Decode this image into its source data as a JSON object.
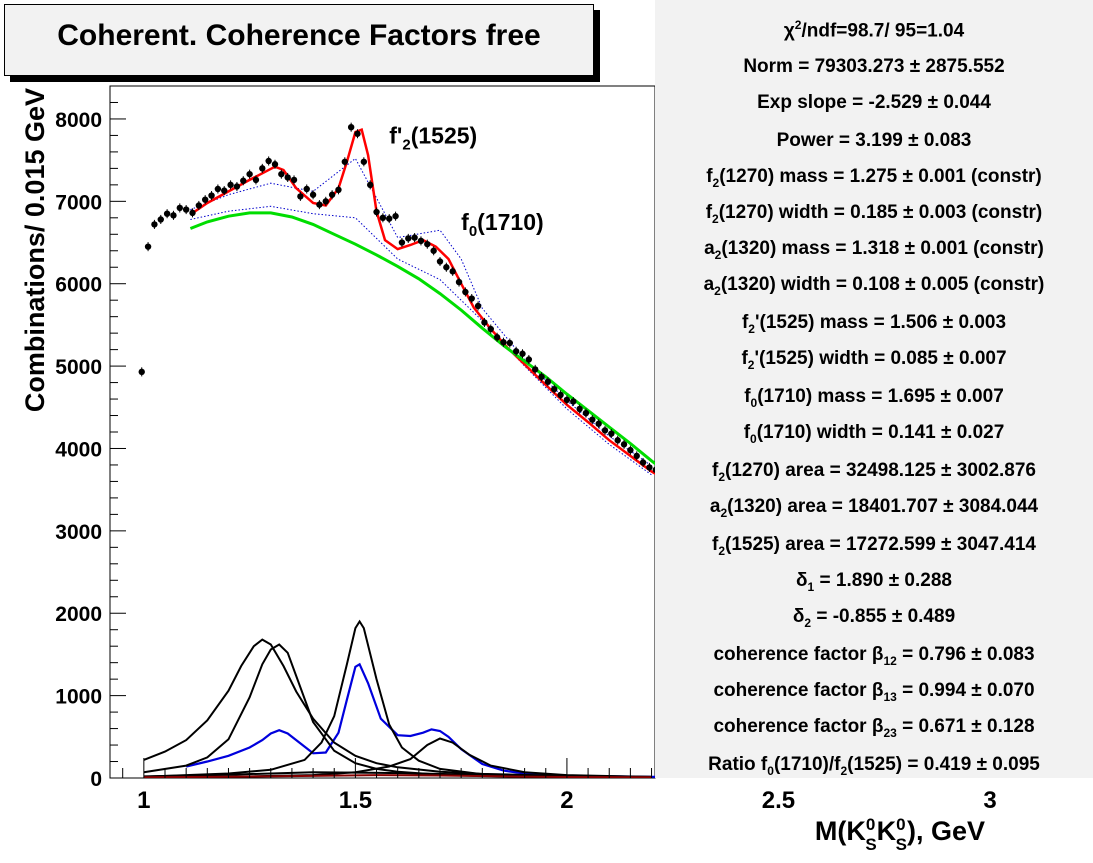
{
  "title": "Coherent. Coherence Factors free",
  "chart_data": {
    "type": "line",
    "xlabel": "M(K_S^0 K_S^0), GeV",
    "ylabel": "Combinations/ 0.015 GeV",
    "xlim": [
      0.92,
      3.0
    ],
    "ylim": [
      0,
      8400
    ],
    "x_ticks": [
      1,
      1.5,
      2,
      2.5,
      3
    ],
    "x_tick_labels": [
      "1",
      "1.5",
      "2",
      "2.5",
      "3"
    ],
    "y_ticks": [
      0,
      1000,
      2000,
      3000,
      4000,
      5000,
      6000,
      7000,
      8000
    ],
    "y_tick_labels": [
      "0",
      "1000",
      "2000",
      "3000",
      "4000",
      "5000",
      "6000",
      "7000",
      "8000"
    ],
    "annotations": [
      {
        "text": "f'2(1525)",
        "main": "f'",
        "sub": "2",
        "rest": "(1525)",
        "x": 1.58,
        "y": 7700
      },
      {
        "text": "f0(1710)",
        "main": "f",
        "sub": "0",
        "rest": "(1710)",
        "x": 1.75,
        "y": 6650
      }
    ],
    "data_points": {
      "name": "data",
      "x": [
        0.995,
        1.01,
        1.025,
        1.04,
        1.055,
        1.07,
        1.085,
        1.1,
        1.115,
        1.13,
        1.145,
        1.16,
        1.175,
        1.19,
        1.205,
        1.22,
        1.235,
        1.25,
        1.265,
        1.28,
        1.295,
        1.31,
        1.325,
        1.34,
        1.355,
        1.37,
        1.385,
        1.4,
        1.415,
        1.43,
        1.445,
        1.46,
        1.475,
        1.49,
        1.505,
        1.52,
        1.535,
        1.55,
        1.565,
        1.58,
        1.595,
        1.61,
        1.625,
        1.64,
        1.655,
        1.67,
        1.685,
        1.7,
        1.715,
        1.73,
        1.745,
        1.76,
        1.775,
        1.79,
        1.805,
        1.82,
        1.835,
        1.85,
        1.865,
        1.88,
        1.895,
        1.91,
        1.925,
        1.94,
        1.955,
        1.97,
        1.985,
        2.0,
        2.015,
        2.03,
        2.045,
        2.06,
        2.075,
        2.09,
        2.105,
        2.12,
        2.135,
        2.15,
        2.165,
        2.18,
        2.195,
        2.21,
        2.225
      ],
      "y": [
        4930,
        6450,
        6720,
        6780,
        6850,
        6830,
        6920,
        6900,
        6860,
        6950,
        7020,
        7070,
        7150,
        7130,
        7200,
        7180,
        7250,
        7330,
        7260,
        7400,
        7490,
        7450,
        7330,
        7290,
        7260,
        7060,
        7150,
        7080,
        6960,
        7000,
        7080,
        7140,
        7480,
        7900,
        7820,
        7480,
        7200,
        6870,
        6800,
        6790,
        6820,
        6500,
        6550,
        6560,
        6520,
        6480,
        6400,
        6270,
        6200,
        6150,
        6020,
        5900,
        5820,
        5730,
        5530,
        5450,
        5350,
        5290,
        5280,
        5180,
        5150,
        5080,
        4960,
        4870,
        4810,
        4720,
        4650,
        4590,
        4570,
        4480,
        4430,
        4350,
        4300,
        4220,
        4180,
        4100,
        4050,
        3980,
        3910,
        3830,
        3770,
        3740,
        3860
      ],
      "error": 55
    },
    "series": [
      {
        "name": "total fit",
        "color": "#ff0000",
        "x": [
          1.11,
          1.15,
          1.2,
          1.25,
          1.28,
          1.31,
          1.33,
          1.36,
          1.4,
          1.43,
          1.46,
          1.48,
          1.5,
          1.515,
          1.53,
          1.55,
          1.57,
          1.6,
          1.63,
          1.66,
          1.69,
          1.72,
          1.75,
          1.78,
          1.82,
          1.86,
          1.9,
          1.95,
          2.0,
          2.05,
          2.1,
          2.15,
          2.2,
          2.22
        ],
        "y": [
          6840,
          6980,
          7120,
          7260,
          7340,
          7420,
          7380,
          7160,
          6980,
          6950,
          7160,
          7480,
          7840,
          7870,
          7560,
          6880,
          6530,
          6420,
          6470,
          6530,
          6450,
          6300,
          6000,
          5710,
          5450,
          5220,
          5020,
          4770,
          4530,
          4320,
          4100,
          3910,
          3720,
          3660
        ]
      },
      {
        "name": "smooth background",
        "color": "#00dd00",
        "x": [
          1.11,
          1.15,
          1.2,
          1.25,
          1.3,
          1.35,
          1.4,
          1.45,
          1.5,
          1.55,
          1.6,
          1.65,
          1.7,
          1.75,
          1.8,
          1.85,
          1.9,
          1.95,
          2.0,
          2.05,
          2.1,
          2.15,
          2.2,
          2.22
        ],
        "y": [
          6670,
          6750,
          6820,
          6860,
          6860,
          6810,
          6720,
          6600,
          6480,
          6350,
          6210,
          6060,
          5880,
          5680,
          5460,
          5250,
          5060,
          4870,
          4660,
          4460,
          4260,
          4060,
          3850,
          3770
        ]
      },
      {
        "name": "interference sum",
        "color": "#0000dd",
        "x": [
          1.1,
          1.15,
          1.2,
          1.25,
          1.28,
          1.3,
          1.32,
          1.34,
          1.37,
          1.4,
          1.43,
          1.46,
          1.48,
          1.5,
          1.51,
          1.53,
          1.56,
          1.6,
          1.63,
          1.66,
          1.68,
          1.7,
          1.72,
          1.75,
          1.8,
          1.85,
          1.9,
          1.95,
          2.0,
          2.2,
          2.5,
          3.0
        ],
        "y": [
          140,
          200,
          270,
          370,
          460,
          540,
          580,
          540,
          420,
          300,
          310,
          550,
          950,
          1350,
          1380,
          1150,
          720,
          520,
          510,
          550,
          590,
          570,
          500,
          350,
          170,
          90,
          55,
          35,
          25,
          15,
          10,
          5
        ]
      },
      {
        "name": "f2(1270)",
        "color": "#000000",
        "x": [
          1.0,
          1.05,
          1.1,
          1.15,
          1.2,
          1.23,
          1.26,
          1.28,
          1.3,
          1.33,
          1.36,
          1.4,
          1.45,
          1.5,
          1.55,
          1.6,
          1.7,
          1.8,
          2.0,
          2.2
        ],
        "y": [
          220,
          320,
          460,
          700,
          1060,
          1360,
          1600,
          1680,
          1620,
          1360,
          1050,
          720,
          430,
          270,
          180,
          130,
          75,
          50,
          25,
          15
        ]
      },
      {
        "name": "a2(1320)",
        "color": "#000000",
        "x": [
          1.0,
          1.1,
          1.15,
          1.2,
          1.25,
          1.28,
          1.3,
          1.32,
          1.34,
          1.37,
          1.4,
          1.45,
          1.5,
          1.55,
          1.6,
          1.7,
          1.8,
          2.0,
          2.2
        ],
        "y": [
          70,
          150,
          250,
          470,
          980,
          1380,
          1560,
          1620,
          1520,
          1100,
          680,
          330,
          180,
          110,
          75,
          40,
          25,
          12,
          8
        ]
      },
      {
        "name": "f2'(1525)",
        "color": "#000000",
        "x": [
          1.0,
          1.2,
          1.3,
          1.38,
          1.42,
          1.45,
          1.48,
          1.5,
          1.51,
          1.52,
          1.55,
          1.58,
          1.61,
          1.65,
          1.7,
          1.8,
          2.0
        ],
        "y": [
          15,
          55,
          100,
          220,
          430,
          750,
          1380,
          1820,
          1900,
          1820,
          1200,
          650,
          370,
          210,
          110,
          45,
          15
        ]
      },
      {
        "name": "f0(1710)",
        "color": "#000000",
        "x": [
          1.0,
          1.2,
          1.4,
          1.5,
          1.58,
          1.63,
          1.67,
          1.7,
          1.73,
          1.77,
          1.82,
          1.9,
          2.0,
          2.2
        ],
        "y": [
          5,
          15,
          35,
          70,
          140,
          230,
          400,
          480,
          430,
          280,
          150,
          70,
          35,
          12
        ]
      },
      {
        "name": "low curve 1",
        "color": "#000000",
        "x": [
          1.0,
          1.2,
          1.4,
          1.6,
          1.8,
          2.0,
          2.2
        ],
        "y": [
          20,
          40,
          70,
          60,
          40,
          20,
          10
        ]
      },
      {
        "name": "low curve 2",
        "color": "#880000",
        "x": [
          1.0,
          1.2,
          1.4,
          1.55,
          1.7,
          1.85,
          2.0,
          2.2
        ],
        "y": [
          10,
          15,
          25,
          35,
          30,
          20,
          12,
          8
        ]
      }
    ],
    "band_upper": {
      "x": [
        1.11,
        1.2,
        1.3,
        1.4,
        1.5,
        1.6,
        1.7,
        1.75,
        1.8,
        1.9,
        2.0,
        2.1,
        2.2
      ],
      "y": [
        6900,
        7080,
        7220,
        7120,
        7520,
        6560,
        6650,
        6300,
        5700,
        5080,
        4580,
        4150,
        3790
      ]
    },
    "band_lower": {
      "x": [
        1.11,
        1.2,
        1.3,
        1.4,
        1.5,
        1.6,
        1.7,
        1.8,
        1.9,
        2.0,
        2.1,
        2.2
      ],
      "y": [
        6780,
        6880,
        6940,
        6850,
        6800,
        6300,
        6050,
        5550,
        5000,
        4480,
        4050,
        3680
      ]
    }
  },
  "stats": [
    {
      "main": "χ",
      "sup": "2",
      "rest": "/ndf=98.7/ 95=1.04"
    },
    {
      "text": "Norm = 79303.273 ± 2875.552"
    },
    {
      "text": "Exp slope = -2.529 ± 0.044"
    },
    {
      "text": "Power = 3.199 ± 0.083"
    },
    {
      "main": "f",
      "sub": "2",
      "rest": "(1270) mass = 1.275 ± 0.001  (constr)"
    },
    {
      "main": "f",
      "sub": "2",
      "rest": "(1270) width = 0.185 ± 0.003  (constr)"
    },
    {
      "main": "a",
      "sub": "2",
      "rest": "(1320) mass = 1.318 ± 0.001  (constr)"
    },
    {
      "main": "a",
      "sub": "2",
      "rest": "(1320) width = 0.108 ± 0.005  (constr)"
    },
    {
      "main": "f",
      "sub": "2",
      "rest": "'(1525) mass = 1.506 ± 0.003"
    },
    {
      "main": "f",
      "sub": "2",
      "rest": "'(1525) width = 0.085 ± 0.007"
    },
    {
      "main": "f",
      "sub": "0",
      "rest": "(1710) mass = 1.695 ± 0.007"
    },
    {
      "main": "f",
      "sub": "0",
      "rest": "(1710) width = 0.141 ± 0.027"
    },
    {
      "main": "f",
      "sub": "2",
      "rest": "(1270) area = 32498.125 ± 3002.876"
    },
    {
      "main": "a",
      "sub": "2",
      "rest": "(1320) area = 18401.707 ± 3084.044"
    },
    {
      "main": "f",
      "sub": "2",
      "rest": "(1525) area = 17272.599 ± 3047.414"
    },
    {
      "main": "δ",
      "sub": "1",
      "rest": " = 1.890 ± 0.288"
    },
    {
      "main": "δ",
      "sub": "2",
      "rest": " = -0.855 ± 0.489"
    },
    {
      "main": "coherence factor β",
      "sub": "12",
      "rest": " = 0.796 ± 0.083"
    },
    {
      "main": "coherence factor β",
      "sub": "13",
      "rest": " = 0.994 ± 0.070"
    },
    {
      "main": "coherence factor β",
      "sub": "23",
      "rest": " = 0.671 ± 0.128"
    },
    {
      "main": "Ratio f",
      "sub": "0",
      "rest": "(1710)/f",
      "sub2": "2",
      "rest2": "(1525) = 0.419 ± 0.095"
    }
  ]
}
